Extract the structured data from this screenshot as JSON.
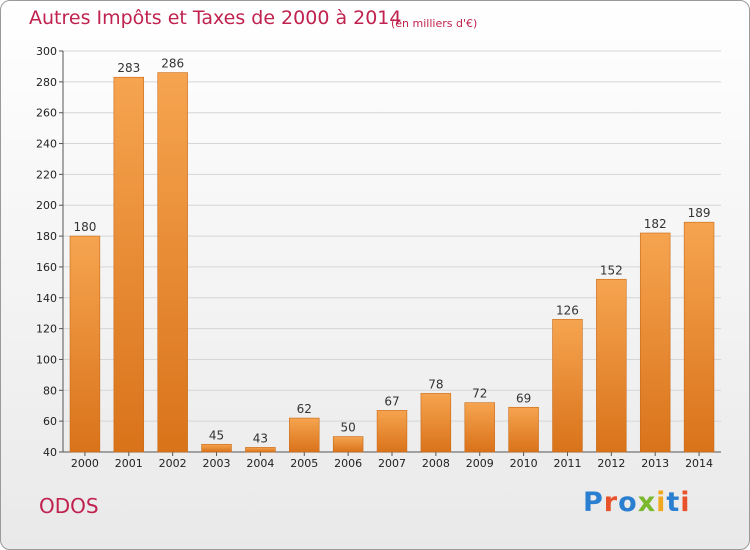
{
  "header": {
    "title": "Autres Impôts et Taxes de 2000 à 2014",
    "subtitle": "(en milliers d'€)"
  },
  "footer": {
    "commune": "ODOS",
    "logo_text": "Proxiti"
  },
  "colors": {
    "bar_top": "#f6a450",
    "bar_bottom": "#d9731a",
    "title": "#c0224f",
    "grid": "#d6d6d6"
  },
  "chart_data": {
    "type": "bar",
    "title": "Autres Impôts et Taxes de 2000 à 2014",
    "subtitle": "(en milliers d'€)",
    "categories": [
      "2000",
      "2001",
      "2002",
      "2003",
      "2004",
      "2005",
      "2006",
      "2007",
      "2008",
      "2009",
      "2010",
      "2011",
      "2012",
      "2013",
      "2014"
    ],
    "values": [
      180,
      283,
      286,
      45,
      43,
      62,
      50,
      67,
      78,
      72,
      69,
      126,
      152,
      182,
      189
    ],
    "ylim": [
      40,
      300
    ],
    "yticks": [
      40,
      60,
      80,
      100,
      120,
      140,
      160,
      180,
      200,
      220,
      240,
      260,
      280,
      300
    ],
    "grid": true,
    "data_labels": true
  }
}
